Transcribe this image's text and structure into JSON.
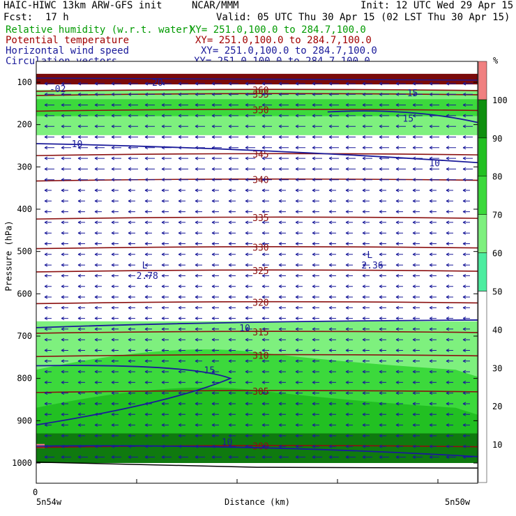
{
  "header": {
    "model": "HAIC-HIWC 13km ARW-GFS init",
    "org": "NCAR/MMM",
    "init": "Init: 12 UTC Wed 29 Apr 15",
    "fcst_label": "Fcst:",
    "fcst_value": "17 h",
    "valid": "Valid: 05 UTC Thu 30 Apr 15 (02 LST Thu 30 Apr 15)",
    "fields": [
      {
        "name": "Relative humidity (w.r.t. water)",
        "xy": "XY= 251.0,100.0 to 284.7,100.0",
        "color": "#009a00"
      },
      {
        "name": "Potential temperature",
        "xy": "XY= 251.0,100.0 to 284.7,100.0",
        "color": "#a00000"
      },
      {
        "name": "Horizontal wind speed",
        "xy": "XY= 251.0,100.0 to 284.7,100.0",
        "color": "#1a1a9a"
      },
      {
        "name": "Circulation vectors",
        "xy": "XY= 251.0,100.0 to 284.7,100.0",
        "color": "#1a1a9a"
      }
    ]
  },
  "chart_data": {
    "type": "heatmap",
    "ylabel": "Pressure (hPa)",
    "xlabel": "Distance (km)",
    "y_ticks": [
      "100",
      "200",
      "300",
      "400",
      "500",
      "600",
      "700",
      "800",
      "900",
      "1000"
    ],
    "x_tick_zero": "0",
    "x_left_label": "5n54w",
    "x_right_label": "5n50w",
    "colorbar_unit": "%",
    "colorbar": [
      {
        "from": 0,
        "to": 50,
        "color": "#ffffff"
      },
      {
        "from": 50,
        "to": 60,
        "color": "#4deda0"
      },
      {
        "from": 60,
        "to": 70,
        "color": "#7ef07e"
      },
      {
        "from": 70,
        "to": 80,
        "color": "#3cd93c"
      },
      {
        "from": 80,
        "to": 90,
        "color": "#22c022"
      },
      {
        "from": 90,
        "to": 100,
        "color": "#0f8f0f"
      },
      {
        "from": 100,
        "to": 110,
        "color": "#f08080"
      }
    ],
    "colorbar_labels": [
      "10",
      "20",
      "30",
      "40",
      "50",
      "60",
      "70",
      "80",
      "90",
      "100"
    ],
    "rh_bands": [
      {
        "p_top": 80,
        "p_bot": 105,
        "rh": 100
      },
      {
        "p_top": 118,
        "p_bot": 225,
        "rh": 60
      },
      {
        "p_top": 140,
        "p_bot": 180,
        "rh": 70
      },
      {
        "p_top": 665,
        "p_bot": 1000,
        "rh": 60
      },
      {
        "p_top": 730,
        "p_bot": 1000,
        "rh": 75
      },
      {
        "p_top": 820,
        "p_bot": 1000,
        "rh": 85
      },
      {
        "p_top": 930,
        "p_bot": 1000,
        "rh": 95
      }
    ],
    "theta_labels": [
      {
        "value": "360",
        "p": 118
      },
      {
        "value": "355",
        "p": 128
      },
      {
        "value": "350",
        "p": 165
      },
      {
        "value": "345",
        "p": 270
      },
      {
        "value": "340",
        "p": 330
      },
      {
        "value": "335",
        "p": 420
      },
      {
        "value": "330",
        "p": 490
      },
      {
        "value": "325",
        "p": 545
      },
      {
        "value": "320",
        "p": 620
      },
      {
        "value": "315",
        "p": 690
      },
      {
        "value": "310",
        "p": 745
      },
      {
        "value": "305",
        "p": 830
      },
      {
        "value": "300",
        "p": 960
      }
    ],
    "theta_lines_p": [
      118,
      128,
      165,
      270,
      330,
      420,
      490,
      545,
      620,
      690,
      745,
      830,
      960
    ],
    "wind_labels": [
      {
        "value": "10",
        "x_frac": 0.08,
        "p": 245
      },
      {
        "value": "15",
        "x_frac": 0.83,
        "p": 185
      },
      {
        "value": "10",
        "x_frac": 0.89,
        "p": 290
      },
      {
        "value": "15",
        "x_frac": 0.84,
        "p": 125
      },
      {
        "value": "10",
        "x_frac": 0.46,
        "p": 680
      },
      {
        "value": "15",
        "x_frac": 0.38,
        "p": 780
      },
      {
        "value": "10",
        "x_frac": 0.42,
        "p": 950
      },
      {
        "value": "-20",
        "x_frac": 0.25,
        "p": 100
      },
      {
        "value": "-02",
        "x_frac": 0.03,
        "p": 115
      }
    ],
    "lows": [
      {
        "label": "L",
        "value": "2.78",
        "x_frac": 0.23,
        "p": 550
      },
      {
        "label": "L",
        "value": "2.36",
        "x_frac": 0.74,
        "p": 525
      }
    ]
  }
}
